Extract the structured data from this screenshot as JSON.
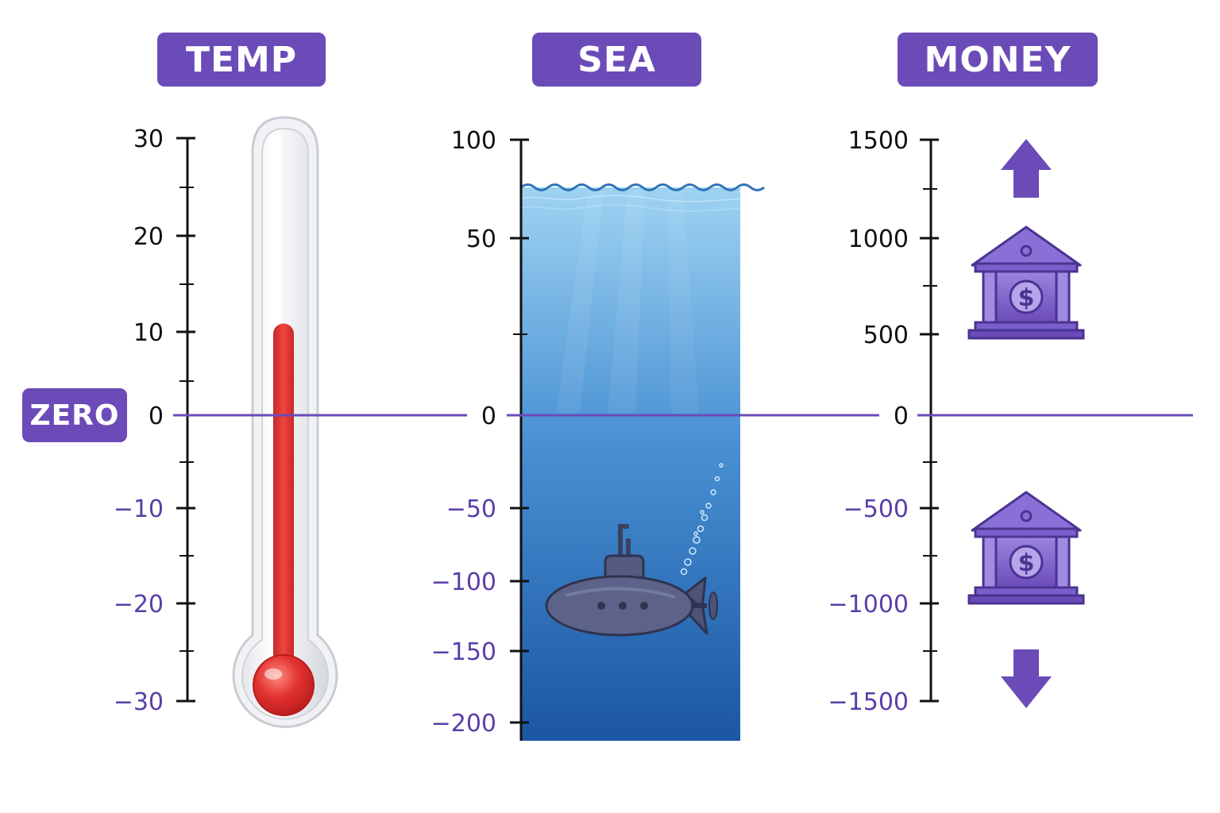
{
  "zero_tag": "ZERO",
  "colors": {
    "accent": "#6b4bb8",
    "negative_text": "#5a3ea8",
    "positive_text": "#111111",
    "mercury": "#e2322f",
    "water_top": "#8cc8ee",
    "water_bottom": "#1c5aa6"
  },
  "panels": {
    "temp": {
      "title": "TEMP",
      "ticks": [
        "30",
        "20",
        "10",
        "0",
        "−10",
        "−20",
        "−30"
      ],
      "reading": 11
    },
    "sea": {
      "title": "SEA",
      "ticks": [
        "100",
        "50",
        "0",
        "−50",
        "−100",
        "−150",
        "−200"
      ],
      "surface_level": 75,
      "submarine_depth": -100
    },
    "money": {
      "title": "MONEY",
      "ticks": [
        "1500",
        "1000",
        "500",
        "0",
        "−500",
        "−1000",
        "−1500"
      ],
      "bank_icons": [
        "bank-icon",
        "bank-icon"
      ],
      "arrow_icons": [
        "arrow-up-icon",
        "arrow-down-icon"
      ]
    }
  }
}
